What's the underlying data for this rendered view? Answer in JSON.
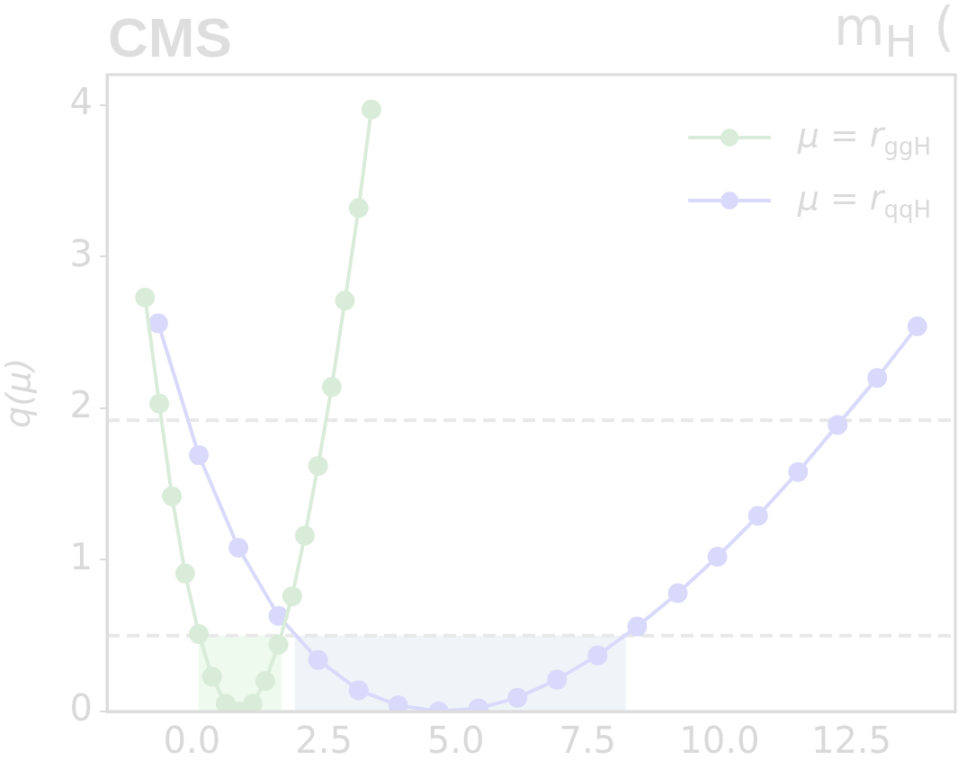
{
  "chart_data": {
    "type": "line",
    "title": "CMS",
    "subtitle": "m$_{H}$ (",
    "ylabel": "q(μ)",
    "xlim": [
      -1.61,
      14.47
    ],
    "ylim": [
      0,
      4.2
    ],
    "xticks": [
      {
        "value": 0,
        "label": "0.0"
      },
      {
        "value": 2.5,
        "label": "2.5"
      },
      {
        "value": 5,
        "label": "5.0"
      },
      {
        "value": 7.5,
        "label": "7.5"
      },
      {
        "value": 10,
        "label": "10.0"
      },
      {
        "value": 12.5,
        "label": "12.5"
      }
    ],
    "yticks": [
      0,
      1,
      2,
      3,
      4
    ],
    "marker": "circle",
    "line_style": "solid",
    "legend": "top right",
    "series": [
      {
        "name": "μ = r$_{ggH}$",
        "color": "#d9ecd9",
        "x": [
          -0.89,
          -0.62,
          -0.38,
          -0.13,
          0.13,
          0.38,
          0.64,
          0.89,
          1.15,
          1.39,
          1.64,
          1.9,
          2.14,
          2.39,
          2.65,
          2.9,
          3.16,
          3.4
        ],
        "values": [
          2.73,
          2.03,
          1.42,
          0.91,
          0.51,
          0.23,
          0.05,
          0.0,
          0.05,
          0.2,
          0.44,
          0.76,
          1.16,
          1.62,
          2.14,
          2.71,
          3.32,
          3.97
        ]
      },
      {
        "name": "μ = r$_{qqH}$",
        "color": "#d9d9fb",
        "x": [
          -0.64,
          0.13,
          0.88,
          1.64,
          2.39,
          3.16,
          3.91,
          4.68,
          5.43,
          6.17,
          6.92,
          7.69,
          8.44,
          9.21,
          9.96,
          10.73,
          11.49,
          12.24,
          12.99,
          13.75
        ],
        "values": [
          2.56,
          1.69,
          1.08,
          0.63,
          0.34,
          0.14,
          0.04,
          0.0,
          0.02,
          0.09,
          0.21,
          0.37,
          0.56,
          0.78,
          1.02,
          1.29,
          1.58,
          1.89,
          2.2,
          2.54
        ]
      }
    ],
    "ref_lines": [
      {
        "axis": "y",
        "value": 1.92,
        "color": "#e8e8e8",
        "line_style": "dashed"
      },
      {
        "axis": "y",
        "value": 0.5,
        "color": "#e8e8e8",
        "line_style": "dashed"
      }
    ],
    "bands": [
      {
        "axis": "x",
        "from": 0.13,
        "to": 1.7,
        "color": "#eefaee"
      },
      {
        "axis": "x",
        "from": 1.95,
        "to": 8.22,
        "color": "#eff4f9"
      }
    ]
  }
}
